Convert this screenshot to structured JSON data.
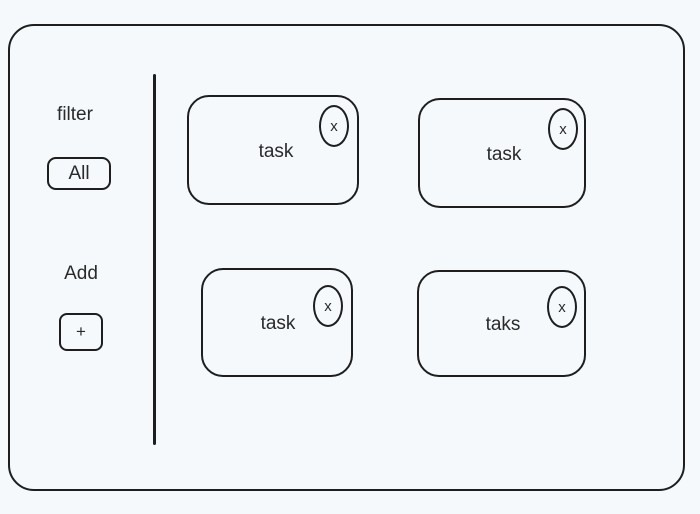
{
  "sidebar": {
    "filter_label": "filter",
    "filter_value": "All",
    "add_label": "Add",
    "add_button": "+"
  },
  "tasks": [
    {
      "label": "task",
      "close": "x"
    },
    {
      "label": "task",
      "close": "x"
    },
    {
      "label": "task",
      "close": "x"
    },
    {
      "label": "taks",
      "close": "x"
    }
  ]
}
